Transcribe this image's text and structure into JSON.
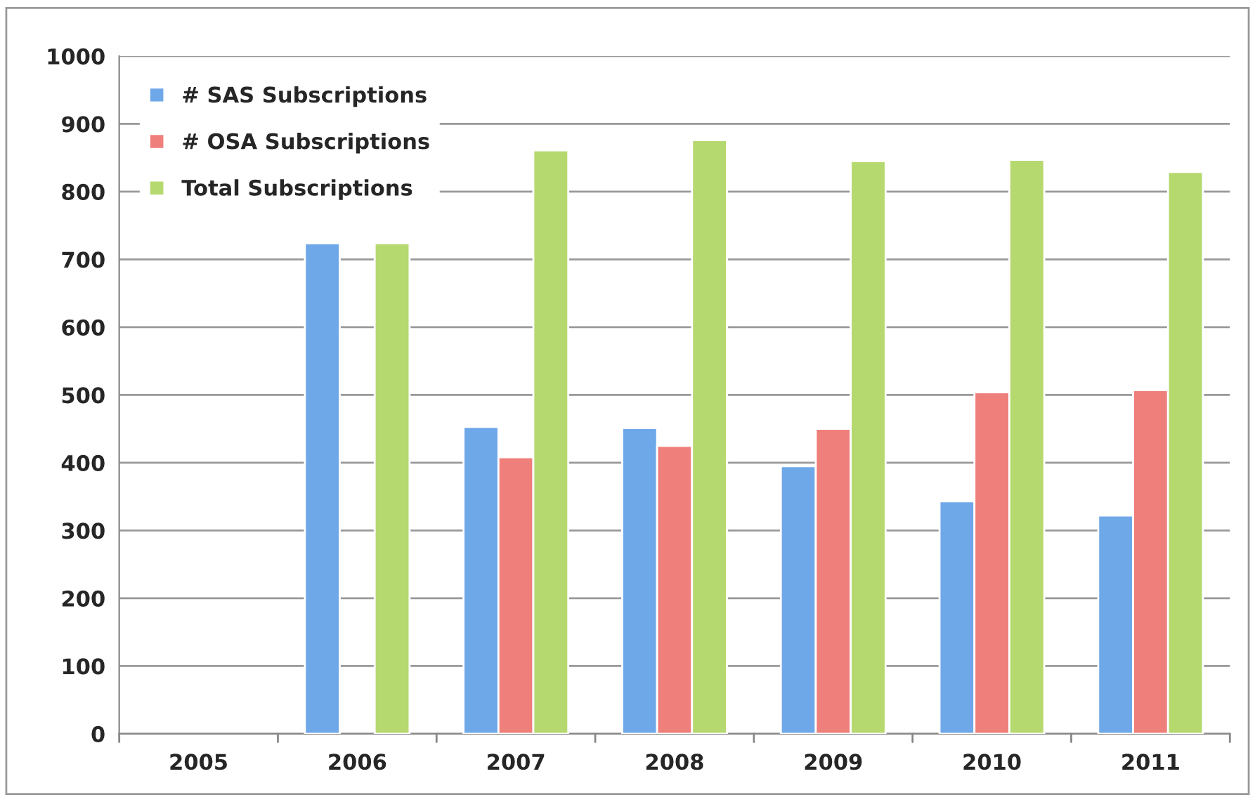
{
  "chart_data": {
    "type": "bar",
    "categories": [
      "2005",
      "2006",
      "2007",
      "2008",
      "2009",
      "2010",
      "2011"
    ],
    "series": [
      {
        "name": "# SAS Subscriptions",
        "color": "#6fa8e8",
        "values": [
          null,
          724,
          453,
          451,
          395,
          343,
          322
        ]
      },
      {
        "name": "# OSA Subscriptions",
        "color": "#ef7f7a",
        "values": [
          null,
          null,
          408,
          425,
          450,
          504,
          507
        ]
      },
      {
        "name": "Total Subscriptions",
        "color": "#b5d96e",
        "values": [
          null,
          724,
          861,
          876,
          845,
          847,
          829
        ]
      }
    ],
    "ylim": [
      0,
      1000
    ],
    "yticks": [
      0,
      100,
      200,
      300,
      400,
      500,
      600,
      700,
      800,
      900,
      1000
    ],
    "grid": "y",
    "legend": "top left"
  }
}
